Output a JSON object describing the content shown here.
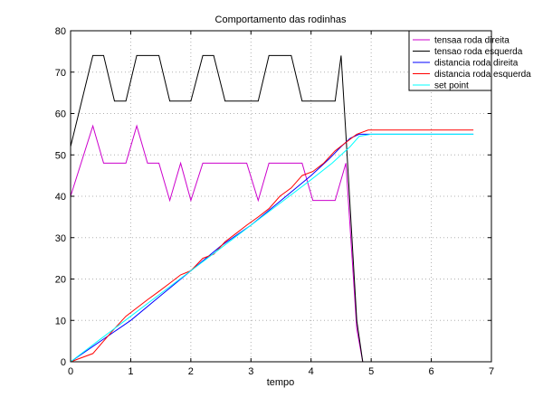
{
  "chart_data": {
    "type": "line",
    "title": "Comportamento das rodinhas",
    "xlabel": "tempo",
    "ylabel": "",
    "xlim": [
      0,
      7
    ],
    "ylim": [
      0,
      80
    ],
    "xticks": [
      0,
      1,
      2,
      3,
      4,
      5,
      6,
      7
    ],
    "yticks": [
      0,
      10,
      20,
      30,
      40,
      50,
      60,
      70,
      80
    ],
    "grid": true,
    "legend_position": "top-right",
    "series": [
      {
        "name": "tensaa roda direita",
        "color": "#cc00cc",
        "x": [
          0,
          0.37,
          0.55,
          0.92,
          1.1,
          1.28,
          1.47,
          1.65,
          1.83,
          2.0,
          2.2,
          2.57,
          2.75,
          2.93,
          3.12,
          3.3,
          3.67,
          3.85,
          4.03,
          4.4,
          4.58,
          4.76,
          4.86
        ],
        "y": [
          40,
          57,
          48,
          48,
          57,
          48,
          48,
          39,
          48,
          39,
          48,
          48,
          48,
          48,
          39,
          48,
          48,
          48,
          39,
          39,
          48,
          8,
          0
        ]
      },
      {
        "name": "tensao roda esquerda",
        "color": "#000000",
        "x": [
          0,
          0.37,
          0.55,
          0.73,
          0.92,
          1.1,
          1.47,
          1.65,
          1.83,
          2.0,
          2.2,
          2.38,
          2.57,
          2.75,
          3.12,
          3.3,
          3.67,
          3.85,
          4.03,
          4.4,
          4.5,
          4.58,
          4.76,
          4.86
        ],
        "y": [
          52,
          74,
          74,
          63,
          63,
          74,
          74,
          63,
          63,
          63,
          74,
          74,
          63,
          63,
          63,
          74,
          74,
          63,
          63,
          63,
          74,
          55,
          10,
          0
        ]
      },
      {
        "name": "distancia roda direita",
        "color": "#0000ff",
        "x": [
          0,
          0.5,
          1.0,
          1.5,
          2.0,
          2.5,
          3.0,
          3.5,
          4.0,
          4.3,
          4.5,
          4.65,
          4.8,
          5.0,
          6.7
        ],
        "y": [
          0,
          5,
          10,
          16,
          22,
          28,
          33,
          39,
          45,
          49,
          52,
          54,
          55,
          55,
          55
        ]
      },
      {
        "name": "distancia roda esquerda",
        "color": "#ff0000",
        "x": [
          0,
          0.37,
          0.55,
          0.73,
          0.92,
          1.1,
          1.28,
          1.47,
          1.65,
          1.83,
          2.0,
          2.2,
          2.38,
          2.57,
          2.75,
          2.93,
          3.12,
          3.3,
          3.48,
          3.67,
          3.85,
          4.03,
          4.21,
          4.4,
          4.58,
          4.76,
          4.95,
          6.7
        ],
        "y": [
          0,
          2,
          5,
          8,
          11,
          13,
          15,
          17,
          19,
          21,
          22,
          25,
          26,
          29,
          31,
          33,
          35,
          37,
          40,
          42,
          45,
          46,
          48,
          51,
          53,
          55,
          56,
          56
        ]
      },
      {
        "name": "set point",
        "color": "#00ffff",
        "x": [
          0,
          0.5,
          1.0,
          1.5,
          2.0,
          2.5,
          3.0,
          3.5,
          4.0,
          4.35,
          4.65,
          4.8,
          5.0,
          6.7
        ],
        "y": [
          0,
          5.5,
          11,
          16.5,
          22,
          27.5,
          33,
          38.5,
          44,
          48,
          52,
          54.5,
          55,
          55
        ]
      }
    ]
  }
}
